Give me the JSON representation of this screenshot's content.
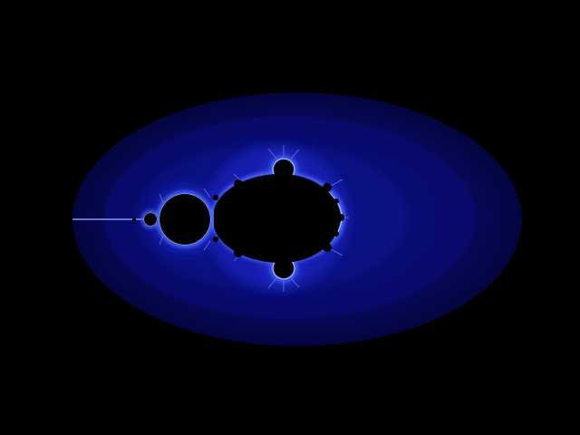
{
  "image": {
    "subject": "mandelbrot-set-fractal",
    "colors": {
      "background": "#000000",
      "outer_band": "#05064a",
      "mid_band": "#080a72",
      "inner_band": "#0d12a8",
      "edge_glow": "#3a4dff",
      "edge_highlight": "#bfe8ff",
      "edge_accent": "#ffd27a",
      "set_fill": "#000000"
    }
  }
}
